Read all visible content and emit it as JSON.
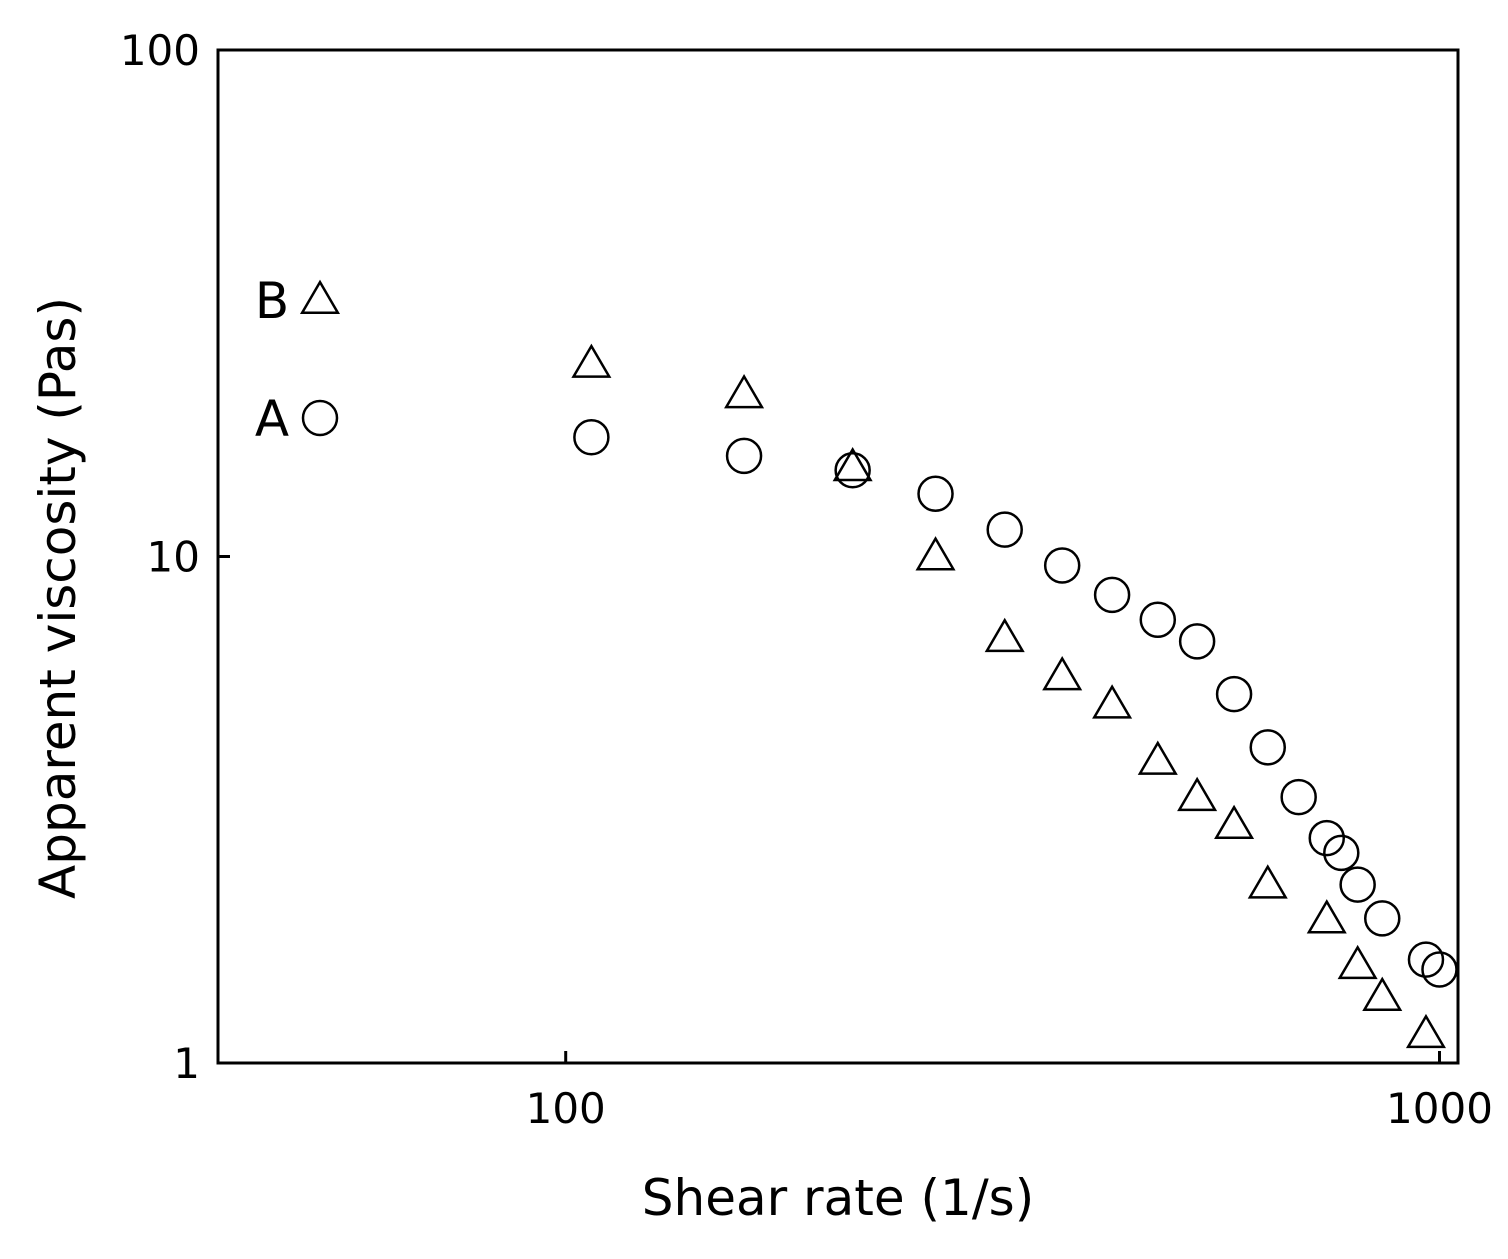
{
  "chart_data": {
    "type": "scatter",
    "xscale": "log",
    "yscale": "log",
    "xlim": [
      40,
      1050
    ],
    "ylim": [
      1,
      100
    ],
    "xticks": [
      100,
      1000
    ],
    "xtick_labels": [
      "100",
      "1000"
    ],
    "yticks": [
      1,
      10,
      100
    ],
    "ytick_labels": [
      "1",
      "10",
      "100"
    ],
    "xlabel": "Shear rate (1/s)",
    "ylabel": "Apparent viscosity (Pas)",
    "grid": false,
    "legend_placement": "left-inside",
    "series": [
      {
        "name": "A",
        "marker": "circle",
        "points": [
          [
            107,
            17.2
          ],
          [
            160,
            15.8
          ],
          [
            213,
            14.8
          ],
          [
            265,
            13.3
          ],
          [
            318,
            11.3
          ],
          [
            370,
            9.6
          ],
          [
            422,
            8.4
          ],
          [
            476,
            7.5
          ],
          [
            528,
            6.8
          ],
          [
            582,
            5.35
          ],
          [
            636,
            4.2
          ],
          [
            690,
            3.35
          ],
          [
            743,
            2.78
          ],
          [
            772,
            2.6
          ],
          [
            806,
            2.25
          ],
          [
            860,
            1.93
          ],
          [
            965,
            1.6
          ],
          [
            1000,
            1.53
          ]
        ]
      },
      {
        "name": "B",
        "marker": "triangle",
        "points": [
          [
            107,
            24.0
          ],
          [
            160,
            20.9
          ],
          [
            213,
            15.0
          ],
          [
            265,
            10.0
          ],
          [
            318,
            6.9
          ],
          [
            370,
            5.8
          ],
          [
            422,
            5.1
          ],
          [
            476,
            3.95
          ],
          [
            528,
            3.35
          ],
          [
            582,
            2.95
          ],
          [
            636,
            2.25
          ],
          [
            743,
            1.92
          ],
          [
            806,
            1.56
          ],
          [
            860,
            1.35
          ],
          [
            965,
            1.14
          ]
        ]
      }
    ]
  }
}
